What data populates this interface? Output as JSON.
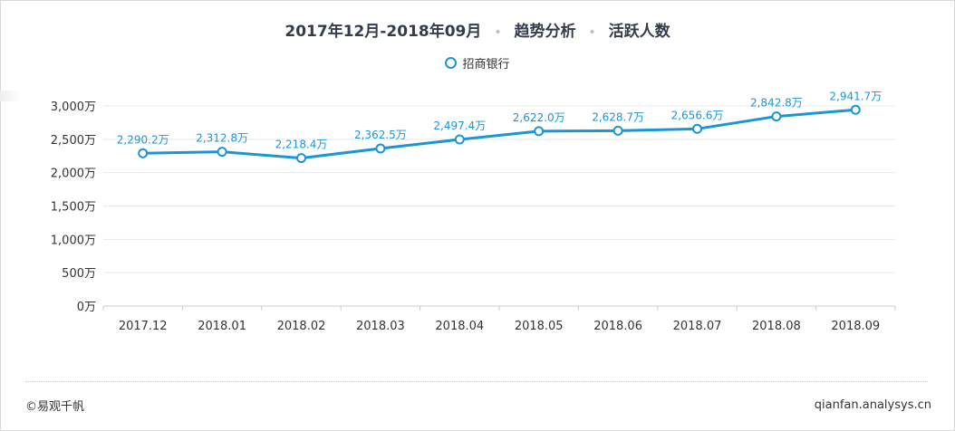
{
  "title": {
    "period": "2017年12月-2018年09月",
    "sep1": "•",
    "section": "趋势分析",
    "sep2": "•",
    "metric": "活跃人数"
  },
  "legend": {
    "label": "招商银行"
  },
  "footer": {
    "copyright": "©易观千帆",
    "site": "qianfan.analysys.cn"
  },
  "colors": {
    "series": "#1a96d6",
    "grid": "#e8e8e8",
    "axis": "#333333"
  },
  "chart_data": {
    "type": "line",
    "categories": [
      "2017.12",
      "2018.01",
      "2018.02",
      "2018.03",
      "2018.04",
      "2018.05",
      "2018.06",
      "2018.07",
      "2018.08",
      "2018.09"
    ],
    "series": [
      {
        "name": "招商银行",
        "values": [
          2290.2,
          2312.8,
          2218.4,
          2362.5,
          2497.4,
          2622.0,
          2628.7,
          2656.6,
          2842.8,
          2941.7
        ],
        "labels": [
          "2,290.2万",
          "2,312.8万",
          "2,218.4万",
          "2,362.5万",
          "2,497.4万",
          "2,622.0万",
          "2,628.7万",
          "2,656.6万",
          "2,842.8万",
          "2,941.7万"
        ]
      }
    ],
    "yticks": [
      0,
      500,
      1000,
      1500,
      2000,
      2500,
      3000
    ],
    "ytick_labels": [
      "0万",
      "500万",
      "1,000万",
      "1,500万",
      "2,000万",
      "2,500万",
      "3,000万"
    ],
    "ylim": [
      0,
      3000
    ],
    "grid": true,
    "legend_position": "top-center"
  }
}
